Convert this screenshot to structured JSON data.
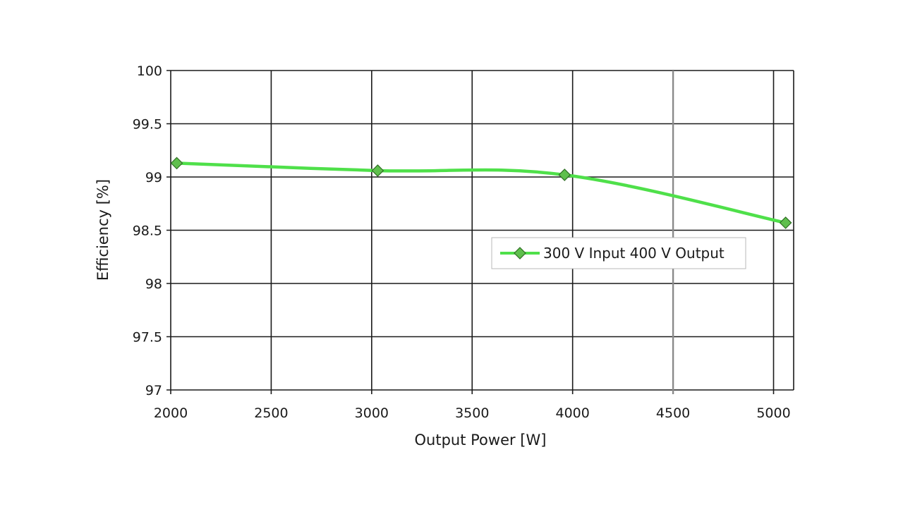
{
  "chart_data": {
    "type": "line",
    "title": "",
    "xlabel": "Output Power [W]",
    "ylabel": "Efficiency [%]",
    "xlim": [
      2000,
      5100
    ],
    "ylim": [
      97,
      100
    ],
    "xticks": [
      2000,
      2500,
      3000,
      3500,
      4000,
      4500,
      5000
    ],
    "yticks": [
      97,
      97.5,
      98,
      98.5,
      99,
      99.5,
      100
    ],
    "xtick_labels": [
      "2000",
      "2500",
      "3000",
      "3500",
      "4000",
      "4500",
      "5000"
    ],
    "ytick_labels": [
      "97",
      "97.5",
      "98",
      "98.5",
      "99",
      "99.5",
      "100"
    ],
    "grid": true,
    "legend": {
      "position": "center-right"
    },
    "series": [
      {
        "name": "300 V Input 400 V Output",
        "color": "#4fe04a",
        "marker": "diamond",
        "marker_color": "#5fbf4d",
        "points": [
          {
            "x": 2030,
            "y": 99.13
          },
          {
            "x": 3030,
            "y": 99.06
          },
          {
            "x": 3960,
            "y": 99.02
          },
          {
            "x": 5060,
            "y": 98.57
          }
        ]
      }
    ]
  }
}
